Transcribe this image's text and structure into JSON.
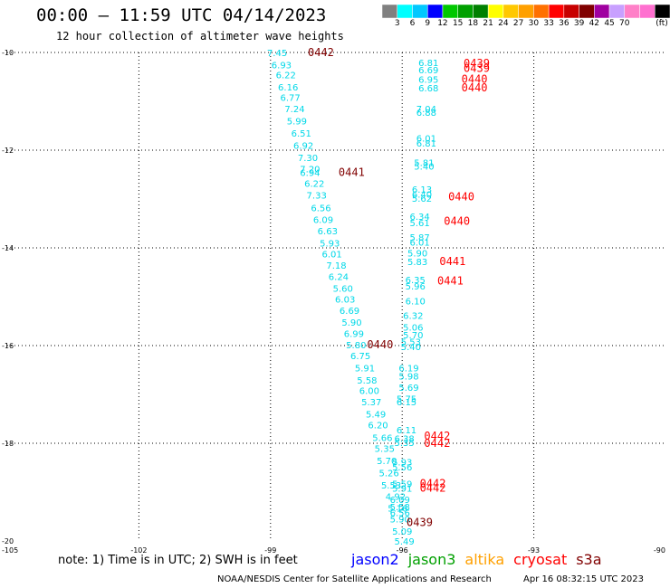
{
  "title": "00:00 – 11:59 UTC 04/14/2023",
  "subtitle": "12 hour collection of altimeter wave heights",
  "colorbar": {
    "unit": "(ft)",
    "ticks": [
      "3",
      "6",
      "9",
      "12",
      "15",
      "18",
      "21",
      "24",
      "27",
      "30",
      "33",
      "36",
      "39",
      "42",
      "45",
      "70"
    ],
    "colors": [
      "#808080",
      "#00ffff",
      "#00c8ff",
      "#0000ff",
      "#00c800",
      "#00a000",
      "#008000",
      "#ffff00",
      "#ffc800",
      "#ffa000",
      "#ff7000",
      "#ff0000",
      "#c80000",
      "#800000",
      "#a000a0",
      "#c8a0ff",
      "#ff80c8",
      "#ff70d0",
      "#000000"
    ]
  },
  "map": {
    "lon_ticks": [
      "-105",
      "-102",
      "-99",
      "-96",
      "-93",
      "-90"
    ],
    "lat_ticks": [
      "-10",
      "-12",
      "-14",
      "-16",
      "-18",
      "-20"
    ],
    "swh_color": "#00d8e8",
    "orbits": [
      {
        "label": "0442",
        "lon": -98.15,
        "lat": -10.0,
        "color": "#800000"
      },
      {
        "label": "0441",
        "lon": -97.45,
        "lat": -12.45,
        "color": "#800000"
      },
      {
        "label": "0440",
        "lon": -96.8,
        "lat": -15.98,
        "color": "#800000"
      },
      {
        "label": "0439",
        "lon": -95.9,
        "lat": -19.62,
        "color": "#800000"
      },
      {
        "label": "0439",
        "lon": -94.6,
        "lat": -10.22,
        "color": "#ff0000"
      },
      {
        "label": "0439",
        "lon": -94.6,
        "lat": -10.32,
        "color": "#ff0000"
      },
      {
        "label": "0440",
        "lon": -94.65,
        "lat": -10.55,
        "color": "#ff0000"
      },
      {
        "label": "0440",
        "lon": -94.65,
        "lat": -10.72,
        "color": "#ff0000"
      },
      {
        "label": "0440",
        "lon": -94.95,
        "lat": -12.95,
        "color": "#ff0000"
      },
      {
        "label": "0440",
        "lon": -95.05,
        "lat": -13.45,
        "color": "#ff0000"
      },
      {
        "label": "0441",
        "lon": -95.15,
        "lat": -14.28,
        "color": "#ff0000"
      },
      {
        "label": "0441",
        "lon": -95.2,
        "lat": -14.68,
        "color": "#ff0000"
      },
      {
        "label": "0442",
        "lon": -95.5,
        "lat": -17.85,
        "color": "#ff0000"
      },
      {
        "label": "0442",
        "lon": -95.5,
        "lat": -18.0,
        "color": "#ff0000"
      },
      {
        "label": "0442",
        "lon": -95.6,
        "lat": -18.82,
        "color": "#ff0000"
      },
      {
        "label": "0442",
        "lon": -95.6,
        "lat": -18.92,
        "color": "#ff0000"
      }
    ],
    "track_a": [
      {
        "v": "7.45",
        "lon": -98.85,
        "lat": -10.0
      },
      {
        "v": "6.93",
        "lon": -98.75,
        "lat": -10.25
      },
      {
        "v": "6.22",
        "lon": -98.65,
        "lat": -10.45
      },
      {
        "v": "6.16",
        "lon": -98.6,
        "lat": -10.7
      },
      {
        "v": "6.77",
        "lon": -98.55,
        "lat": -10.92
      },
      {
        "v": "7.24",
        "lon": -98.45,
        "lat": -11.15
      },
      {
        "v": "5.99",
        "lon": -98.4,
        "lat": -11.4
      },
      {
        "v": "6.51",
        "lon": -98.3,
        "lat": -11.65
      },
      {
        "v": "6.92",
        "lon": -98.25,
        "lat": -11.9
      },
      {
        "v": "7.30",
        "lon": -98.15,
        "lat": -12.15
      },
      {
        "v": "7.20",
        "lon": -98.1,
        "lat": -12.38
      },
      {
        "v": "6.94",
        "lon": -98.1,
        "lat": -12.45
      },
      {
        "v": "6.22",
        "lon": -98.0,
        "lat": -12.68
      },
      {
        "v": "7.33",
        "lon": -97.95,
        "lat": -12.92
      },
      {
        "v": "6.56",
        "lon": -97.85,
        "lat": -13.18
      },
      {
        "v": "6.09",
        "lon": -97.8,
        "lat": -13.42
      },
      {
        "v": "6.63",
        "lon": -97.7,
        "lat": -13.65
      },
      {
        "v": "5.93",
        "lon": -97.65,
        "lat": -13.9
      },
      {
        "v": "6.01",
        "lon": -97.6,
        "lat": -14.12
      },
      {
        "v": "7.18",
        "lon": -97.5,
        "lat": -14.35
      },
      {
        "v": "6.24",
        "lon": -97.45,
        "lat": -14.58
      },
      {
        "v": "5.60",
        "lon": -97.35,
        "lat": -14.82
      },
      {
        "v": "6.03",
        "lon": -97.3,
        "lat": -15.05
      },
      {
        "v": "6.69",
        "lon": -97.2,
        "lat": -15.28
      },
      {
        "v": "5.90",
        "lon": -97.15,
        "lat": -15.52
      },
      {
        "v": "6.99",
        "lon": -97.1,
        "lat": -15.75
      },
      {
        "v": "5.80",
        "lon": -97.05,
        "lat": -15.98
      },
      {
        "v": "6.75",
        "lon": -96.95,
        "lat": -16.2
      },
      {
        "v": "5.91",
        "lon": -96.85,
        "lat": -16.45
      },
      {
        "v": "5.58",
        "lon": -96.8,
        "lat": -16.7
      },
      {
        "v": "6.00",
        "lon": -96.75,
        "lat": -16.92
      },
      {
        "v": "5.37",
        "lon": -96.7,
        "lat": -17.15
      },
      {
        "v": "5.49",
        "lon": -96.6,
        "lat": -17.4
      },
      {
        "v": "6.20",
        "lon": -96.55,
        "lat": -17.62
      },
      {
        "v": "5.66",
        "lon": -96.45,
        "lat": -17.88
      },
      {
        "v": "5.35",
        "lon": -96.4,
        "lat": -18.1
      },
      {
        "v": "5.70",
        "lon": -96.35,
        "lat": -18.35
      },
      {
        "v": "5.26",
        "lon": -96.3,
        "lat": -18.6
      },
      {
        "v": "5.53",
        "lon": -96.25,
        "lat": -18.85
      },
      {
        "v": "4.92",
        "lon": -96.15,
        "lat": -19.08
      },
      {
        "v": "5.16",
        "lon": -96.1,
        "lat": -19.32
      },
      {
        "v": "5.90",
        "lon": -96.05,
        "lat": -19.55
      },
      {
        "v": "5.09",
        "lon": -96.0,
        "lat": -19.8
      },
      {
        "v": "5.49",
        "lon": -95.95,
        "lat": -20.0
      }
    ],
    "track_b": [
      {
        "v": "6.81",
        "lon": -95.4,
        "lat": -10.2
      },
      {
        "v": "6.69",
        "lon": -95.4,
        "lat": -10.35
      },
      {
        "v": "6.95",
        "lon": -95.4,
        "lat": -10.55
      },
      {
        "v": "6.68",
        "lon": -95.4,
        "lat": -10.72
      },
      {
        "v": "7.04",
        "lon": -95.45,
        "lat": -11.15
      },
      {
        "v": "6.88",
        "lon": -95.45,
        "lat": -11.22
      },
      {
        "v": "6.01",
        "lon": -95.45,
        "lat": -11.75
      },
      {
        "v": "6.81",
        "lon": -95.45,
        "lat": -11.85
      },
      {
        "v": "5.81",
        "lon": -95.5,
        "lat": -12.25
      },
      {
        "v": "5.40",
        "lon": -95.5,
        "lat": -12.32
      },
      {
        "v": "6.13",
        "lon": -95.55,
        "lat": -12.8
      },
      {
        "v": "6.40",
        "lon": -95.55,
        "lat": -12.9
      },
      {
        "v": "5.62",
        "lon": -95.55,
        "lat": -12.98
      },
      {
        "v": "6.34",
        "lon": -95.6,
        "lat": -13.35
      },
      {
        "v": "5.61",
        "lon": -95.6,
        "lat": -13.48
      },
      {
        "v": "5.87",
        "lon": -95.6,
        "lat": -13.78
      },
      {
        "v": "6.01",
        "lon": -95.6,
        "lat": -13.88
      },
      {
        "v": "5.90",
        "lon": -95.65,
        "lat": -14.1
      },
      {
        "v": "5.83",
        "lon": -95.65,
        "lat": -14.28
      },
      {
        "v": "6.35",
        "lon": -95.7,
        "lat": -14.65
      },
      {
        "v": "5.96",
        "lon": -95.7,
        "lat": -14.78
      },
      {
        "v": "6.10",
        "lon": -95.7,
        "lat": -15.08
      },
      {
        "v": "6.32",
        "lon": -95.75,
        "lat": -15.38
      },
      {
        "v": "5.06",
        "lon": -95.75,
        "lat": -15.62
      },
      {
        "v": "5.70",
        "lon": -95.75,
        "lat": -15.78
      },
      {
        "v": "5.53",
        "lon": -95.8,
        "lat": -15.92
      },
      {
        "v": "5.40",
        "lon": -95.8,
        "lat": -16.02
      },
      {
        "v": "6.19",
        "lon": -95.85,
        "lat": -16.45
      },
      {
        "v": "5.98",
        "lon": -95.85,
        "lat": -16.62
      },
      {
        "v": "5.69",
        "lon": -95.85,
        "lat": -16.85
      },
      {
        "v": "5.75",
        "lon": -95.9,
        "lat": -17.08
      },
      {
        "v": "6.15",
        "lon": -95.9,
        "lat": -17.15
      },
      {
        "v": "6.11",
        "lon": -95.9,
        "lat": -17.72
      },
      {
        "v": "6.38",
        "lon": -95.95,
        "lat": -17.9
      },
      {
        "v": "5.35",
        "lon": -95.95,
        "lat": -17.98
      },
      {
        "v": "5.93",
        "lon": -96.0,
        "lat": -18.38
      },
      {
        "v": "5.56",
        "lon": -96.0,
        "lat": -18.48
      },
      {
        "v": "5.59",
        "lon": -96.0,
        "lat": -18.82
      },
      {
        "v": "5.91",
        "lon": -96.0,
        "lat": -18.92
      },
      {
        "v": "6.09",
        "lon": -96.05,
        "lat": -19.15
      },
      {
        "v": "5.58",
        "lon": -96.05,
        "lat": -19.3
      },
      {
        "v": "6.56",
        "lon": -96.05,
        "lat": -19.42
      }
    ]
  },
  "note": "note: 1) Time is in UTC; 2) SWH is in feet",
  "legend": [
    {
      "label": "jason2",
      "color": "#0000ff"
    },
    {
      "label": "jason3",
      "color": "#00a000"
    },
    {
      "label": "altika",
      "color": "#ffa000"
    },
    {
      "label": "cryosat",
      "color": "#ff0000"
    },
    {
      "label": "s3a",
      "color": "#800000"
    }
  ],
  "footer_left": "NOAA/NESDIS Center for Satellite Applications and Research",
  "footer_right": "Apr 16 08:32:15 UTC 2023"
}
